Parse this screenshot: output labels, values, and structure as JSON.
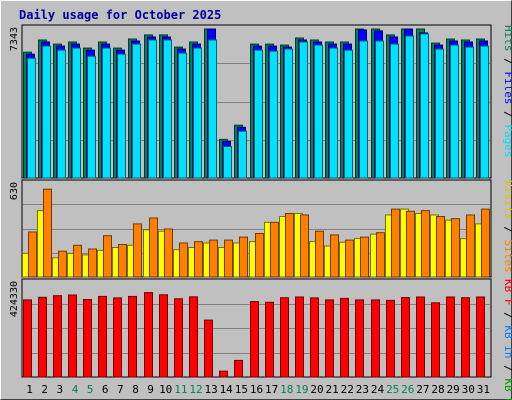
{
  "page": {
    "title": "Daily usage for October 2025"
  },
  "chart_data": {
    "type": "bar",
    "title": "Daily usage for October 2025",
    "x": [
      1,
      2,
      3,
      4,
      5,
      6,
      7,
      8,
      9,
      10,
      11,
      12,
      13,
      14,
      15,
      16,
      17,
      18,
      19,
      20,
      21,
      22,
      23,
      24,
      25,
      26,
      27,
      28,
      29,
      30,
      31
    ],
    "x_labels": [
      "1",
      "2",
      "3",
      "4",
      "5",
      "6",
      "7",
      "8",
      "9",
      "10",
      "11",
      "12",
      "13",
      "14",
      "15",
      "16",
      "17",
      "18",
      "19",
      "20",
      "21",
      "22",
      "23",
      "24",
      "25",
      "26",
      "27",
      "28",
      "29",
      "30",
      "31"
    ],
    "weekend_days": [
      4,
      5,
      11,
      12,
      18,
      19,
      25,
      26
    ],
    "day_colors": {
      "weekday": "#000000",
      "weekend": "#00805c"
    },
    "panels": [
      {
        "name": "hits-files-pages",
        "ymax_label": "7343",
        "ylim": [
          0,
          7343
        ],
        "legend": [
          {
            "text": "Hits",
            "color": "#00805c"
          },
          {
            "text": " / ",
            "color": "#000000"
          },
          {
            "text": "Files",
            "color": "#0000ff"
          },
          {
            "text": " / ",
            "color": "#000000"
          },
          {
            "text": "Pages",
            "color": "#00e0ff"
          }
        ],
        "series": [
          {
            "name": "Hits",
            "color": "#00805c",
            "values": [
              6200,
              6800,
              6600,
              6700,
              6400,
              6700,
              6400,
              6850,
              7050,
              7050,
              6450,
              6700,
              7500,
              1900,
              2600,
              6600,
              6600,
              6550,
              6900,
              6800,
              6700,
              6700,
              7400,
              7350,
              7050,
              7500,
              7550,
              6650,
              6850,
              6800,
              6850
            ]
          },
          {
            "name": "Files",
            "color": "#0000ff",
            "values": [
              6100,
              6700,
              6500,
              6600,
              6300,
              6600,
              6300,
              6750,
              6950,
              6950,
              6350,
              6600,
              7400,
              1800,
              2500,
              6500,
              6500,
              6450,
              6800,
              6700,
              6600,
              6600,
              7300,
              7250,
              6950,
              7400,
              7150,
              6550,
              6750,
              6700,
              6750
            ]
          },
          {
            "name": "Pages",
            "color": "#00e0ff",
            "values": [
              5900,
              6500,
              6300,
              6400,
              6000,
              6400,
              6100,
              6600,
              6800,
              6800,
              6150,
              6400,
              6800,
              1550,
              2300,
              6300,
              6250,
              6350,
              6700,
              6550,
              6400,
              6300,
              6750,
              6750,
              6600,
              7000,
              7100,
              6350,
              6550,
              6450,
              6500
            ]
          }
        ]
      },
      {
        "name": "visits-sites",
        "ymax_label": "630",
        "ylim": [
          0,
          630
        ],
        "legend": [
          {
            "text": "Visits",
            "color": "#e0c000"
          },
          {
            "text": " / ",
            "color": "#000000"
          },
          {
            "text": "Sites",
            "color": "#ff8000"
          }
        ],
        "series": [
          {
            "name": "Visits",
            "color": "#ffff00",
            "values": [
              160,
              450,
              130,
              160,
              150,
              180,
              200,
              215,
              320,
              310,
              185,
              200,
              230,
              200,
              230,
              240,
              370,
              410,
              430,
              240,
              210,
              235,
              260,
              290,
              420,
              460,
              430,
              420,
              385,
              260,
              360
            ]
          },
          {
            "name": "Sites",
            "color": "#ff8000",
            "values": [
              305,
              595,
              175,
              215,
              190,
              280,
              220,
              360,
              400,
              325,
              230,
              240,
              250,
              250,
              270,
              295,
              370,
              430,
              420,
              310,
              285,
              250,
              270,
              300,
              460,
              445,
              450,
              410,
              395,
              420,
              460
            ]
          }
        ]
      },
      {
        "name": "kbytes",
        "ymax_label": "424330",
        "ylim": [
          0,
          424330
        ],
        "legend": [
          {
            "text": "KB F",
            "color": "#ff0000"
          },
          {
            "text": " / ",
            "color": "#000000"
          },
          {
            "text": "KB In",
            "color": "#0080ff"
          },
          {
            "text": " / ",
            "color": "#000000"
          },
          {
            "text": "KB Out",
            "color": "#00a000"
          }
        ],
        "series": [
          {
            "name": "KB F",
            "color": "#ff0000",
            "values": [
              348000,
              360000,
              367000,
              370000,
              350000,
              364000,
              357000,
              364000,
              381000,
              371000,
              353000,
              362000,
              257000,
              26000,
              75000,
              341000,
              337000,
              358000,
              361000,
              357000,
              348000,
              355000,
              348000,
              348000,
              346000,
              359000,
              361000,
              335000,
              361000,
              358000,
              361000
            ]
          }
        ]
      }
    ]
  }
}
